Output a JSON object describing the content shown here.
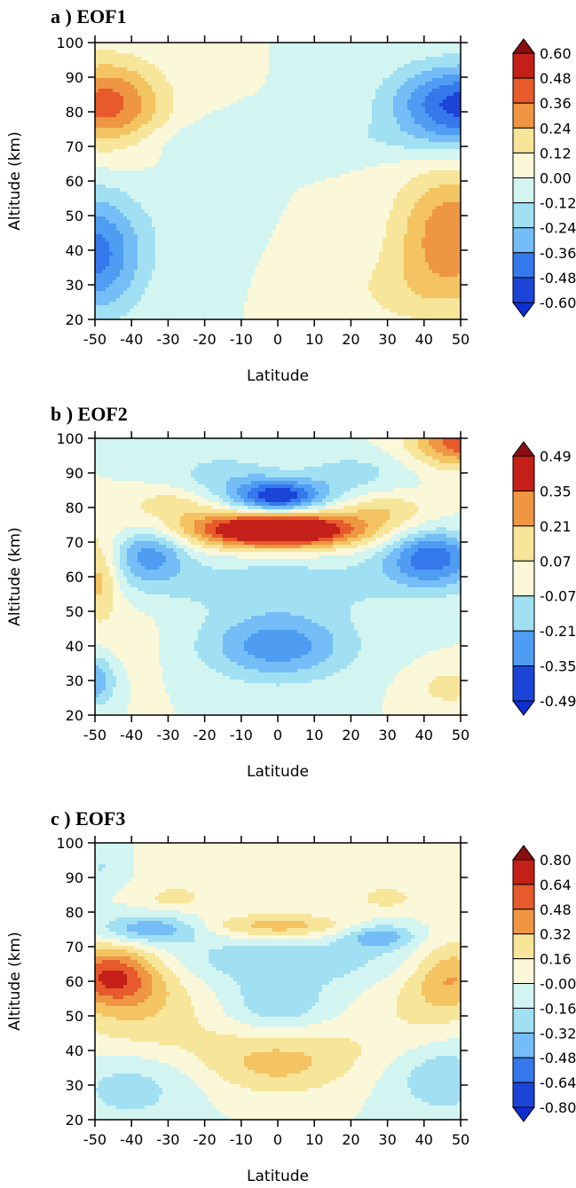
{
  "chart_data": [
    {
      "type": "heatmap",
      "panel": "a",
      "title": "a )  EOF1",
      "xlabel": "Latitude",
      "ylabel": "Altitude (km)",
      "xlim": [
        -50,
        50
      ],
      "ylim": [
        20,
        100
      ],
      "xticks": [
        "-50",
        "-40",
        "-30",
        "-20",
        "-10",
        "0",
        "10",
        "20",
        "30",
        "40",
        "50"
      ],
      "yticks": [
        "20",
        "30",
        "40",
        "50",
        "60",
        "70",
        "80",
        "90",
        "100"
      ],
      "colorbar": {
        "levels": [
          "0.60",
          "0.48",
          "0.36",
          "0.24",
          "0.12",
          "0.00",
          "-0.12",
          "-0.24",
          "-0.36",
          "-0.48",
          "-0.60"
        ],
        "vmax": 0.6
      },
      "features": [
        {
          "lat": -47,
          "alt": 82,
          "value": 0.45,
          "rx": 11,
          "ry": 9
        },
        {
          "lat": 50,
          "alt": 82,
          "value": -0.55,
          "rx": 13,
          "ry": 8
        },
        {
          "lat": -50,
          "alt": 39,
          "value": -0.45,
          "rx": 9,
          "ry": 12
        },
        {
          "lat": 48,
          "alt": 45,
          "value": 0.38,
          "rx": 11,
          "ry": 13
        },
        {
          "lat": 35,
          "alt": 28,
          "value": 0.1,
          "rx": 15,
          "ry": 8
        },
        {
          "lat": 0,
          "alt": 72,
          "value": -0.07,
          "rx": 45,
          "ry": 4
        },
        {
          "lat": -25,
          "alt": 50,
          "value": -0.05,
          "rx": 8,
          "ry": 14
        }
      ]
    },
    {
      "type": "heatmap",
      "panel": "b",
      "title": "b )  EOF2",
      "xlabel": "Latitude",
      "ylabel": "Altitude (km)",
      "xlim": [
        -50,
        50
      ],
      "ylim": [
        20,
        100
      ],
      "xticks": [
        "-50",
        "-40",
        "-30",
        "-20",
        "-10",
        "0",
        "10",
        "20",
        "30",
        "40",
        "50"
      ],
      "yticks": [
        "20",
        "30",
        "40",
        "50",
        "60",
        "70",
        "80",
        "90",
        "100"
      ],
      "colorbar": {
        "levels": [
          "0.49",
          "0.35",
          "0.21",
          "0.07",
          "-0.07",
          "-0.21",
          "-0.35",
          "-0.49"
        ],
        "vmax": 0.49
      },
      "features": [
        {
          "lat": 0,
          "alt": 73.5,
          "value": 0.52,
          "rx": 14,
          "ry": 3.5
        },
        {
          "lat": 0,
          "alt": 74,
          "value": 0.2,
          "rx": 30,
          "ry": 4
        },
        {
          "lat": -30,
          "alt": 81,
          "value": 0.12,
          "rx": 8,
          "ry": 3
        },
        {
          "lat": 30,
          "alt": 80,
          "value": 0.12,
          "rx": 8,
          "ry": 3
        },
        {
          "lat": 0,
          "alt": 83,
          "value": -0.5,
          "rx": 9,
          "ry": 3.5
        },
        {
          "lat": -35,
          "alt": 67,
          "value": -0.28,
          "rx": 7,
          "ry": 6
        },
        {
          "lat": 42,
          "alt": 66,
          "value": -0.38,
          "rx": 9,
          "ry": 6
        },
        {
          "lat": 0,
          "alt": 40,
          "value": -0.3,
          "rx": 14,
          "ry": 7
        },
        {
          "lat": -50,
          "alt": 30,
          "value": -0.25,
          "rx": 4,
          "ry": 5
        },
        {
          "lat": 50,
          "alt": 99,
          "value": 0.38,
          "rx": 9,
          "ry": 5
        },
        {
          "lat": -49,
          "alt": 59,
          "value": 0.22,
          "rx": 4,
          "ry": 8
        },
        {
          "lat": 47,
          "alt": 28,
          "value": 0.12,
          "rx": 7,
          "ry": 4
        },
        {
          "lat": -40,
          "alt": 42,
          "value": 0.04,
          "rx": 7,
          "ry": 10
        },
        {
          "lat": -15,
          "alt": 90,
          "value": -0.12,
          "rx": 10,
          "ry": 4
        },
        {
          "lat": 20,
          "alt": 90,
          "value": -0.12,
          "rx": 10,
          "ry": 4
        },
        {
          "lat": 0,
          "alt": 58,
          "value": -0.12,
          "rx": 30,
          "ry": 6
        }
      ]
    },
    {
      "type": "heatmap",
      "panel": "c",
      "title": "c )  EOF3",
      "xlabel": "Latitude",
      "ylabel": "Altitude (km)",
      "xlim": [
        -50,
        50
      ],
      "ylim": [
        20,
        100
      ],
      "xticks": [
        "-50",
        "-40",
        "-30",
        "-20",
        "-10",
        "0",
        "10",
        "20",
        "30",
        "40",
        "50"
      ],
      "yticks": [
        "20",
        "30",
        "40",
        "50",
        "60",
        "70",
        "80",
        "90",
        "100"
      ],
      "colorbar": {
        "levels": [
          "0.80",
          "0.64",
          "0.48",
          "0.32",
          "0.16",
          "-0.00",
          "-0.16",
          "-0.32",
          "-0.48",
          "-0.64",
          "-0.80"
        ],
        "vmax": 0.8
      },
      "features": [
        {
          "lat": -46,
          "alt": 62,
          "value": 0.6,
          "rx": 9,
          "ry": 6
        },
        {
          "lat": -38,
          "alt": 55,
          "value": 0.25,
          "rx": 13,
          "ry": 10
        },
        {
          "lat": 48,
          "alt": 62,
          "value": 0.35,
          "rx": 7,
          "ry": 7
        },
        {
          "lat": 40,
          "alt": 55,
          "value": 0.16,
          "rx": 10,
          "ry": 9
        },
        {
          "lat": 0,
          "alt": 76,
          "value": 0.35,
          "rx": 14,
          "ry": 2.5
        },
        {
          "lat": -28,
          "alt": 84,
          "value": 0.18,
          "rx": 6,
          "ry": 2.5
        },
        {
          "lat": 30,
          "alt": 84,
          "value": 0.18,
          "rx": 6,
          "ry": 2.5
        },
        {
          "lat": -35,
          "alt": 75,
          "value": -0.4,
          "rx": 10,
          "ry": 3
        },
        {
          "lat": 28,
          "alt": 73,
          "value": -0.35,
          "rx": 7,
          "ry": 2.5
        },
        {
          "lat": 0,
          "alt": 66,
          "value": -0.22,
          "rx": 30,
          "ry": 5
        },
        {
          "lat": 0,
          "alt": 53,
          "value": -0.25,
          "rx": 10,
          "ry": 6
        },
        {
          "lat": 0,
          "alt": 35,
          "value": 0.25,
          "rx": 14,
          "ry": 6
        },
        {
          "lat": 0,
          "alt": 42,
          "value": 0.12,
          "rx": 35,
          "ry": 6
        },
        {
          "lat": -40,
          "alt": 30,
          "value": -0.2,
          "rx": 12,
          "ry": 8
        },
        {
          "lat": 45,
          "alt": 33,
          "value": -0.25,
          "rx": 10,
          "ry": 8
        },
        {
          "lat": -48,
          "alt": 93,
          "value": -0.16,
          "rx": 5,
          "ry": 4
        },
        {
          "lat": 0,
          "alt": 92,
          "value": 0.06,
          "rx": 35,
          "ry": 5
        }
      ]
    }
  ]
}
